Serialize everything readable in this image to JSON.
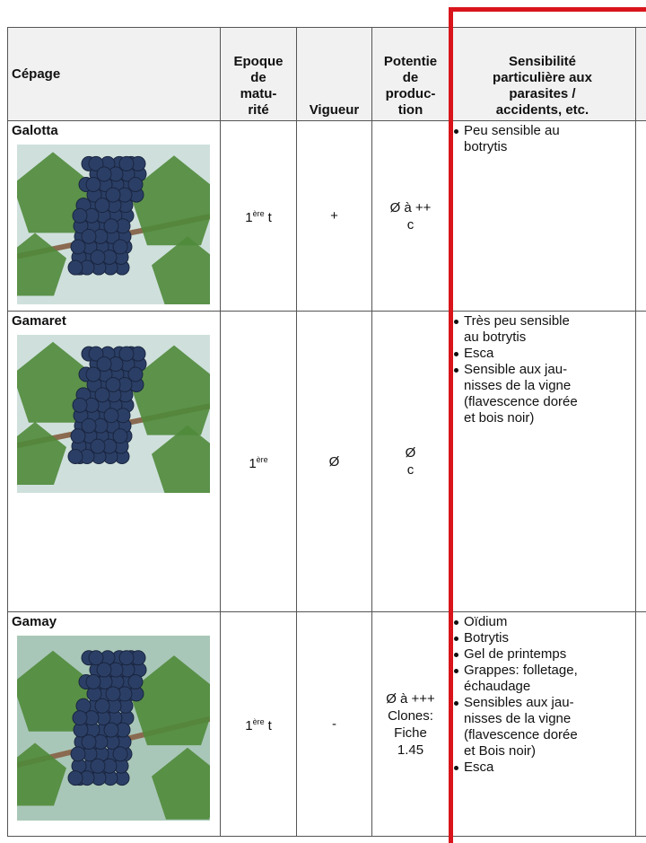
{
  "header": {
    "columns": [
      [
        "Cépage"
      ],
      [
        "Epoque",
        "de",
        "matu-",
        "rité"
      ],
      [
        "Vigueur"
      ],
      [
        "Potentie",
        "de",
        "produc-",
        "tion"
      ],
      [
        "Sensibilité",
        "particulière aux",
        "parasites /",
        "accidents, etc."
      ]
    ]
  },
  "rows": [
    {
      "cepage": "Galotta",
      "maturity": {
        "number": "1",
        "superscript": "ère",
        "rest": "t"
      },
      "vigueur": "+",
      "potential": [
        "Ø à ++",
        "c"
      ],
      "sensitivity": [
        [
          "Peu sensible au",
          "botrytis"
        ]
      ]
    },
    {
      "cepage": "Gamaret",
      "maturity": {
        "number": "1",
        "superscript": "ère"
      },
      "vigueur": "Ø",
      "potential": [
        "Ø",
        "c"
      ],
      "sensitivity": [
        [
          "Très peu sensible",
          "au botrytis"
        ],
        [
          "Esca"
        ],
        [
          "Sensible aux jau-",
          "nisses de la vigne",
          "(flavescence dorée",
          "et bois noir)"
        ]
      ]
    },
    {
      "cepage": "Gamay",
      "maturity": {
        "number": "1",
        "superscript": "ère",
        "rest": "t"
      },
      "vigueur": "-",
      "potential": [
        "Ø à +++",
        "Clones:",
        "Fiche",
        "1.45"
      ],
      "sensitivity": [
        [
          "Oïdium"
        ],
        [
          "Botrytis"
        ],
        [
          "Gel de printemps"
        ],
        [
          "Grappes: folletage,",
          "échaudage"
        ],
        [
          "Sensibles aux jau-",
          "nisses de la vigne",
          "(flavescence dorée",
          "et Bois noir)"
        ],
        [
          "Esca"
        ]
      ]
    }
  ]
}
